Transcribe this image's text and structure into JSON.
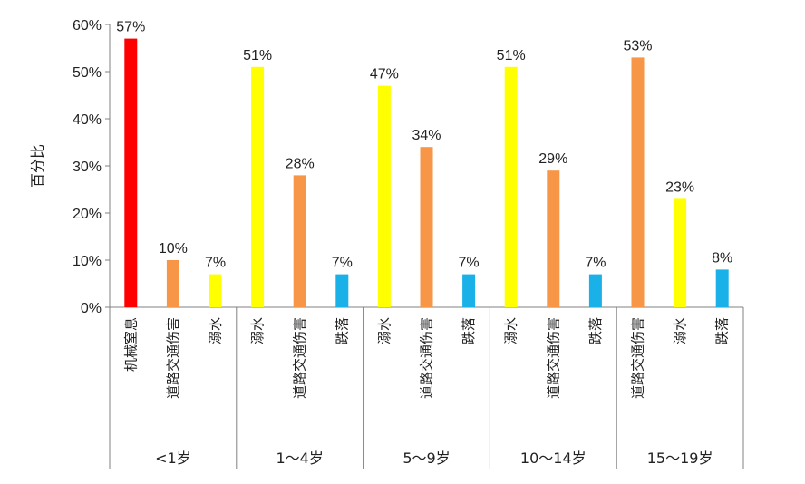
{
  "chart_data": {
    "type": "bar",
    "ylabel": "百分比",
    "ylim": [
      0,
      60
    ],
    "yticks": [
      "0%",
      "10%",
      "20%",
      "30%",
      "40%",
      "50%",
      "60%"
    ],
    "grid": false,
    "groups": [
      {
        "name": "<1岁",
        "bars": [
          {
            "category": "机械窒息",
            "value": 57,
            "label": "57%",
            "color": "#ff0000"
          },
          {
            "category": "道路交通伤害",
            "value": 10,
            "label": "10%",
            "color": "#f79646"
          },
          {
            "category": "溺水",
            "value": 7,
            "label": "7%",
            "color": "#ffff00"
          }
        ]
      },
      {
        "name": "1～4岁",
        "bars": [
          {
            "category": "溺水",
            "value": 51,
            "label": "51%",
            "color": "#ffff00"
          },
          {
            "category": "道路交通伤害",
            "value": 28,
            "label": "28%",
            "color": "#f79646"
          },
          {
            "category": "跌落",
            "value": 7,
            "label": "7%",
            "color": "#1ab0e8"
          }
        ]
      },
      {
        "name": "5～9岁",
        "bars": [
          {
            "category": "溺水",
            "value": 47,
            "label": "47%",
            "color": "#ffff00"
          },
          {
            "category": "道路交通伤害",
            "value": 34,
            "label": "34%",
            "color": "#f79646"
          },
          {
            "category": "跌落",
            "value": 7,
            "label": "7%",
            "color": "#1ab0e8"
          }
        ]
      },
      {
        "name": "10～14岁",
        "bars": [
          {
            "category": "溺水",
            "value": 51,
            "label": "51%",
            "color": "#ffff00"
          },
          {
            "category": "道路交通伤害",
            "value": 29,
            "label": "29%",
            "color": "#f79646"
          },
          {
            "category": "跌落",
            "value": 7,
            "label": "7%",
            "color": "#1ab0e8"
          }
        ]
      },
      {
        "name": "15～19岁",
        "bars": [
          {
            "category": "道路交通伤害",
            "value": 53,
            "label": "53%",
            "color": "#f79646"
          },
          {
            "category": "溺水",
            "value": 23,
            "label": "23%",
            "color": "#ffff00"
          },
          {
            "category": "跌落",
            "value": 8,
            "label": "8%",
            "color": "#1ab0e8"
          }
        ]
      }
    ]
  }
}
